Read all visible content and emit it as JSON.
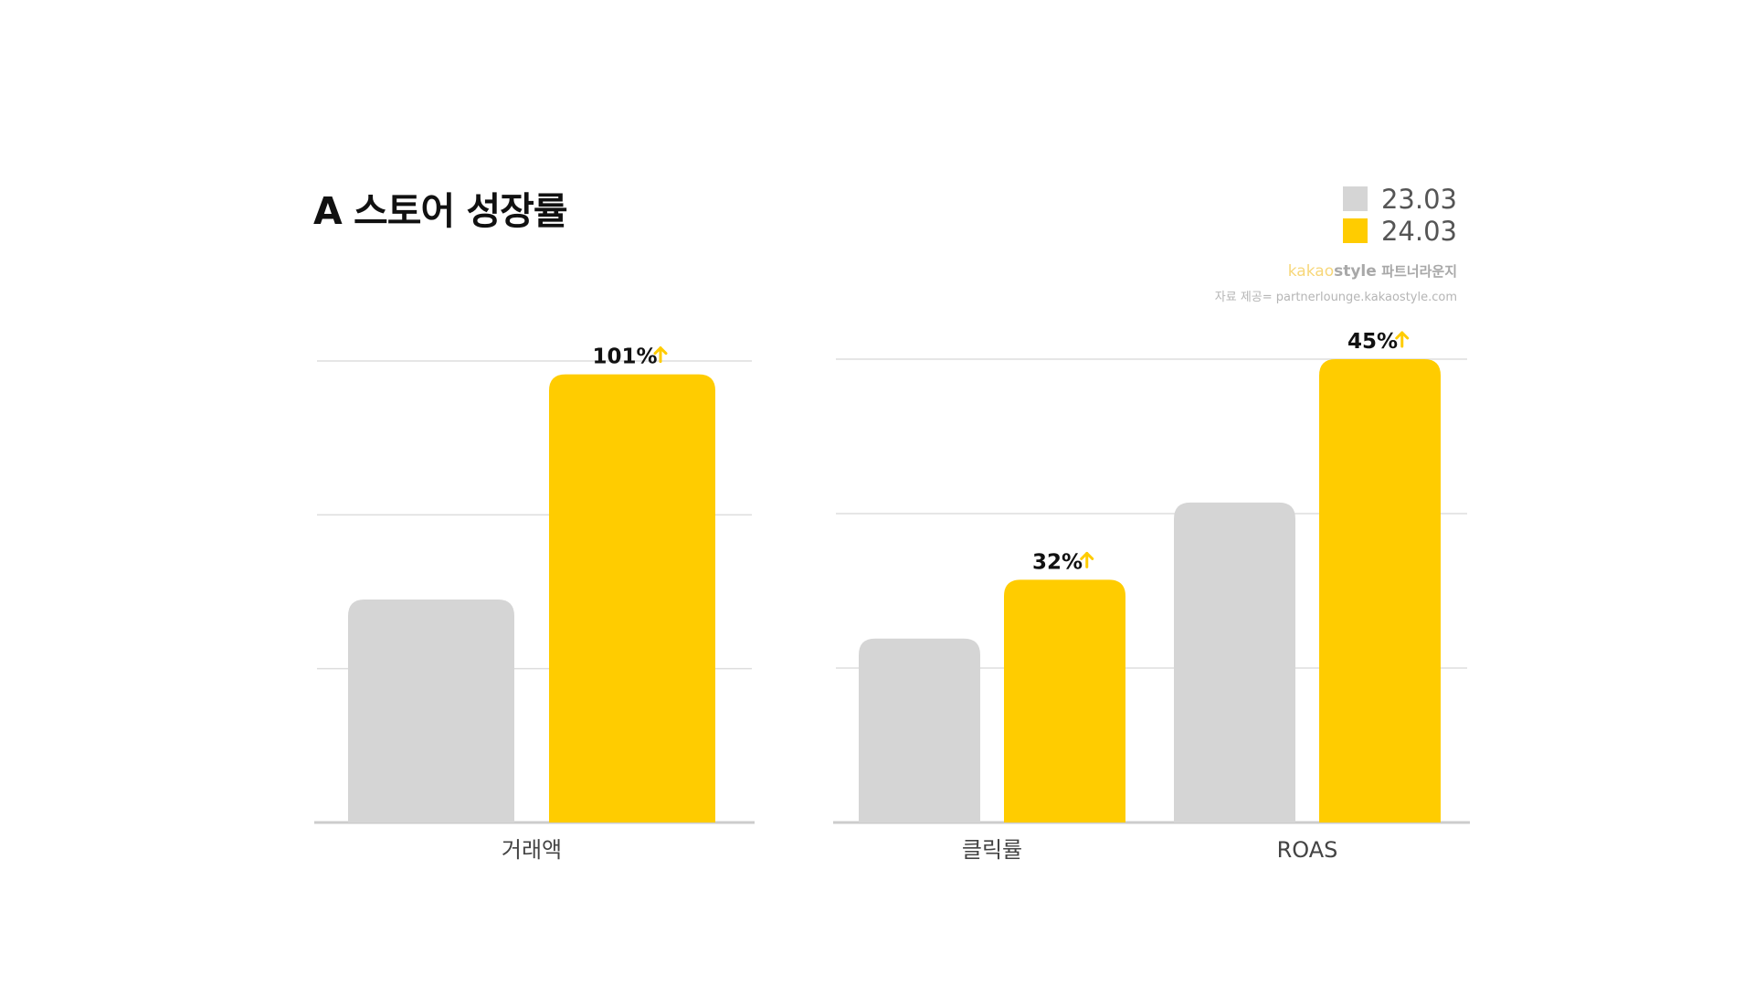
{
  "title": "A 스토어 성장률",
  "legend": [
    {
      "label": "23.03",
      "color": "#d5d5d5"
    },
    {
      "label": "24.03",
      "color": "#ffcc00"
    }
  ],
  "credit": {
    "brand_kakao": "kakao",
    "brand_style": "style",
    "brand_sub": "파트너라운지",
    "source": "자료 제공= partnerlounge.kakaostyle.com"
  },
  "colors": {
    "prev": "#d5d5d5",
    "curr": "#ffcc00",
    "arrow": "#ffcc00",
    "grid": "#dddddd",
    "axis": "#cccccc"
  },
  "chart_data": [
    {
      "type": "bar",
      "categories": [
        "거래액"
      ],
      "series": [
        {
          "name": "23.03",
          "values": [
            1.0
          ]
        },
        {
          "name": "24.03",
          "values": [
            2.01
          ]
        }
      ],
      "ylim": [
        0,
        2.07
      ],
      "data_labels": [
        {
          "category": "거래액",
          "text": "101%",
          "icon": "up-arrow-icon"
        }
      ],
      "grid": true
    },
    {
      "type": "bar",
      "categories": [
        "클릭률",
        "ROAS"
      ],
      "series": [
        {
          "name": "23.03",
          "values": [
            1.0,
            1.74
          ]
        },
        {
          "name": "24.03",
          "values": [
            1.32,
            2.52
          ]
        }
      ],
      "ylim": [
        0,
        2.52
      ],
      "data_labels": [
        {
          "category": "클릭률",
          "text": "32%",
          "icon": "up-arrow-icon"
        },
        {
          "category": "ROAS",
          "text": "45%",
          "icon": "up-arrow-icon"
        }
      ],
      "grid": true
    }
  ]
}
